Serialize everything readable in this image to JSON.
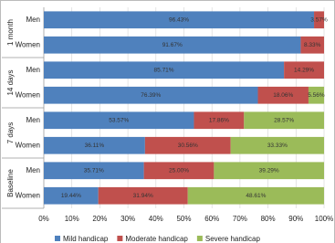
{
  "chart_data": {
    "type": "stacked-barh",
    "groups": [
      {
        "name": "1 month",
        "categories": [
          "Men",
          "Women"
        ]
      },
      {
        "name": "14 days",
        "categories": [
          "Men",
          "Women"
        ]
      },
      {
        "name": "7 days",
        "categories": [
          "Men",
          "Women"
        ]
      },
      {
        "name": "Baseline",
        "categories": [
          "Men",
          "Women"
        ]
      }
    ],
    "series": [
      {
        "name": "Mild handicap",
        "color": "#4f81bd",
        "values": [
          96.43,
          91.67,
          85.71,
          76.39,
          53.57,
          36.11,
          35.71,
          19.44
        ],
        "value_labels": [
          "96.43%",
          "91.67%",
          "85.71%",
          "76.39%",
          "53.57%",
          "36.11%",
          "35.71%",
          "19.44%"
        ]
      },
      {
        "name": "Moderate handicap",
        "color": "#c0504d",
        "values": [
          3.57,
          8.33,
          14.29,
          18.06,
          17.86,
          30.56,
          25.0,
          31.94
        ],
        "value_labels": [
          "3.57%",
          "8.33%",
          "14.29%",
          "18.06%",
          "17.86%",
          "30.56%",
          "25.00%",
          "31.94%"
        ]
      },
      {
        "name": "Severe handicap",
        "color": "#9bbb59",
        "values": [
          null,
          null,
          null,
          5.56,
          28.57,
          33.33,
          39.29,
          48.61
        ],
        "value_labels": [
          null,
          null,
          null,
          "5.56%",
          "28.57%",
          "33.33%",
          "39.29%",
          "48.61%"
        ]
      }
    ],
    "xlim": [
      0,
      100
    ],
    "xticks": [
      {
        "value": 0,
        "label": "0%"
      },
      {
        "value": 10,
        "label": "10%"
      },
      {
        "value": 20,
        "label": "20%"
      },
      {
        "value": 30,
        "label": "30%"
      },
      {
        "value": 40,
        "label": "40%"
      },
      {
        "value": 50,
        "label": "50%"
      },
      {
        "value": 60,
        "label": "60%"
      },
      {
        "value": 70,
        "label": "70%"
      },
      {
        "value": 80,
        "label": "80%"
      },
      {
        "value": 90,
        "label": "90%"
      },
      {
        "value": 100,
        "label": "100%"
      }
    ],
    "grid": true,
    "legend": "bottom"
  }
}
